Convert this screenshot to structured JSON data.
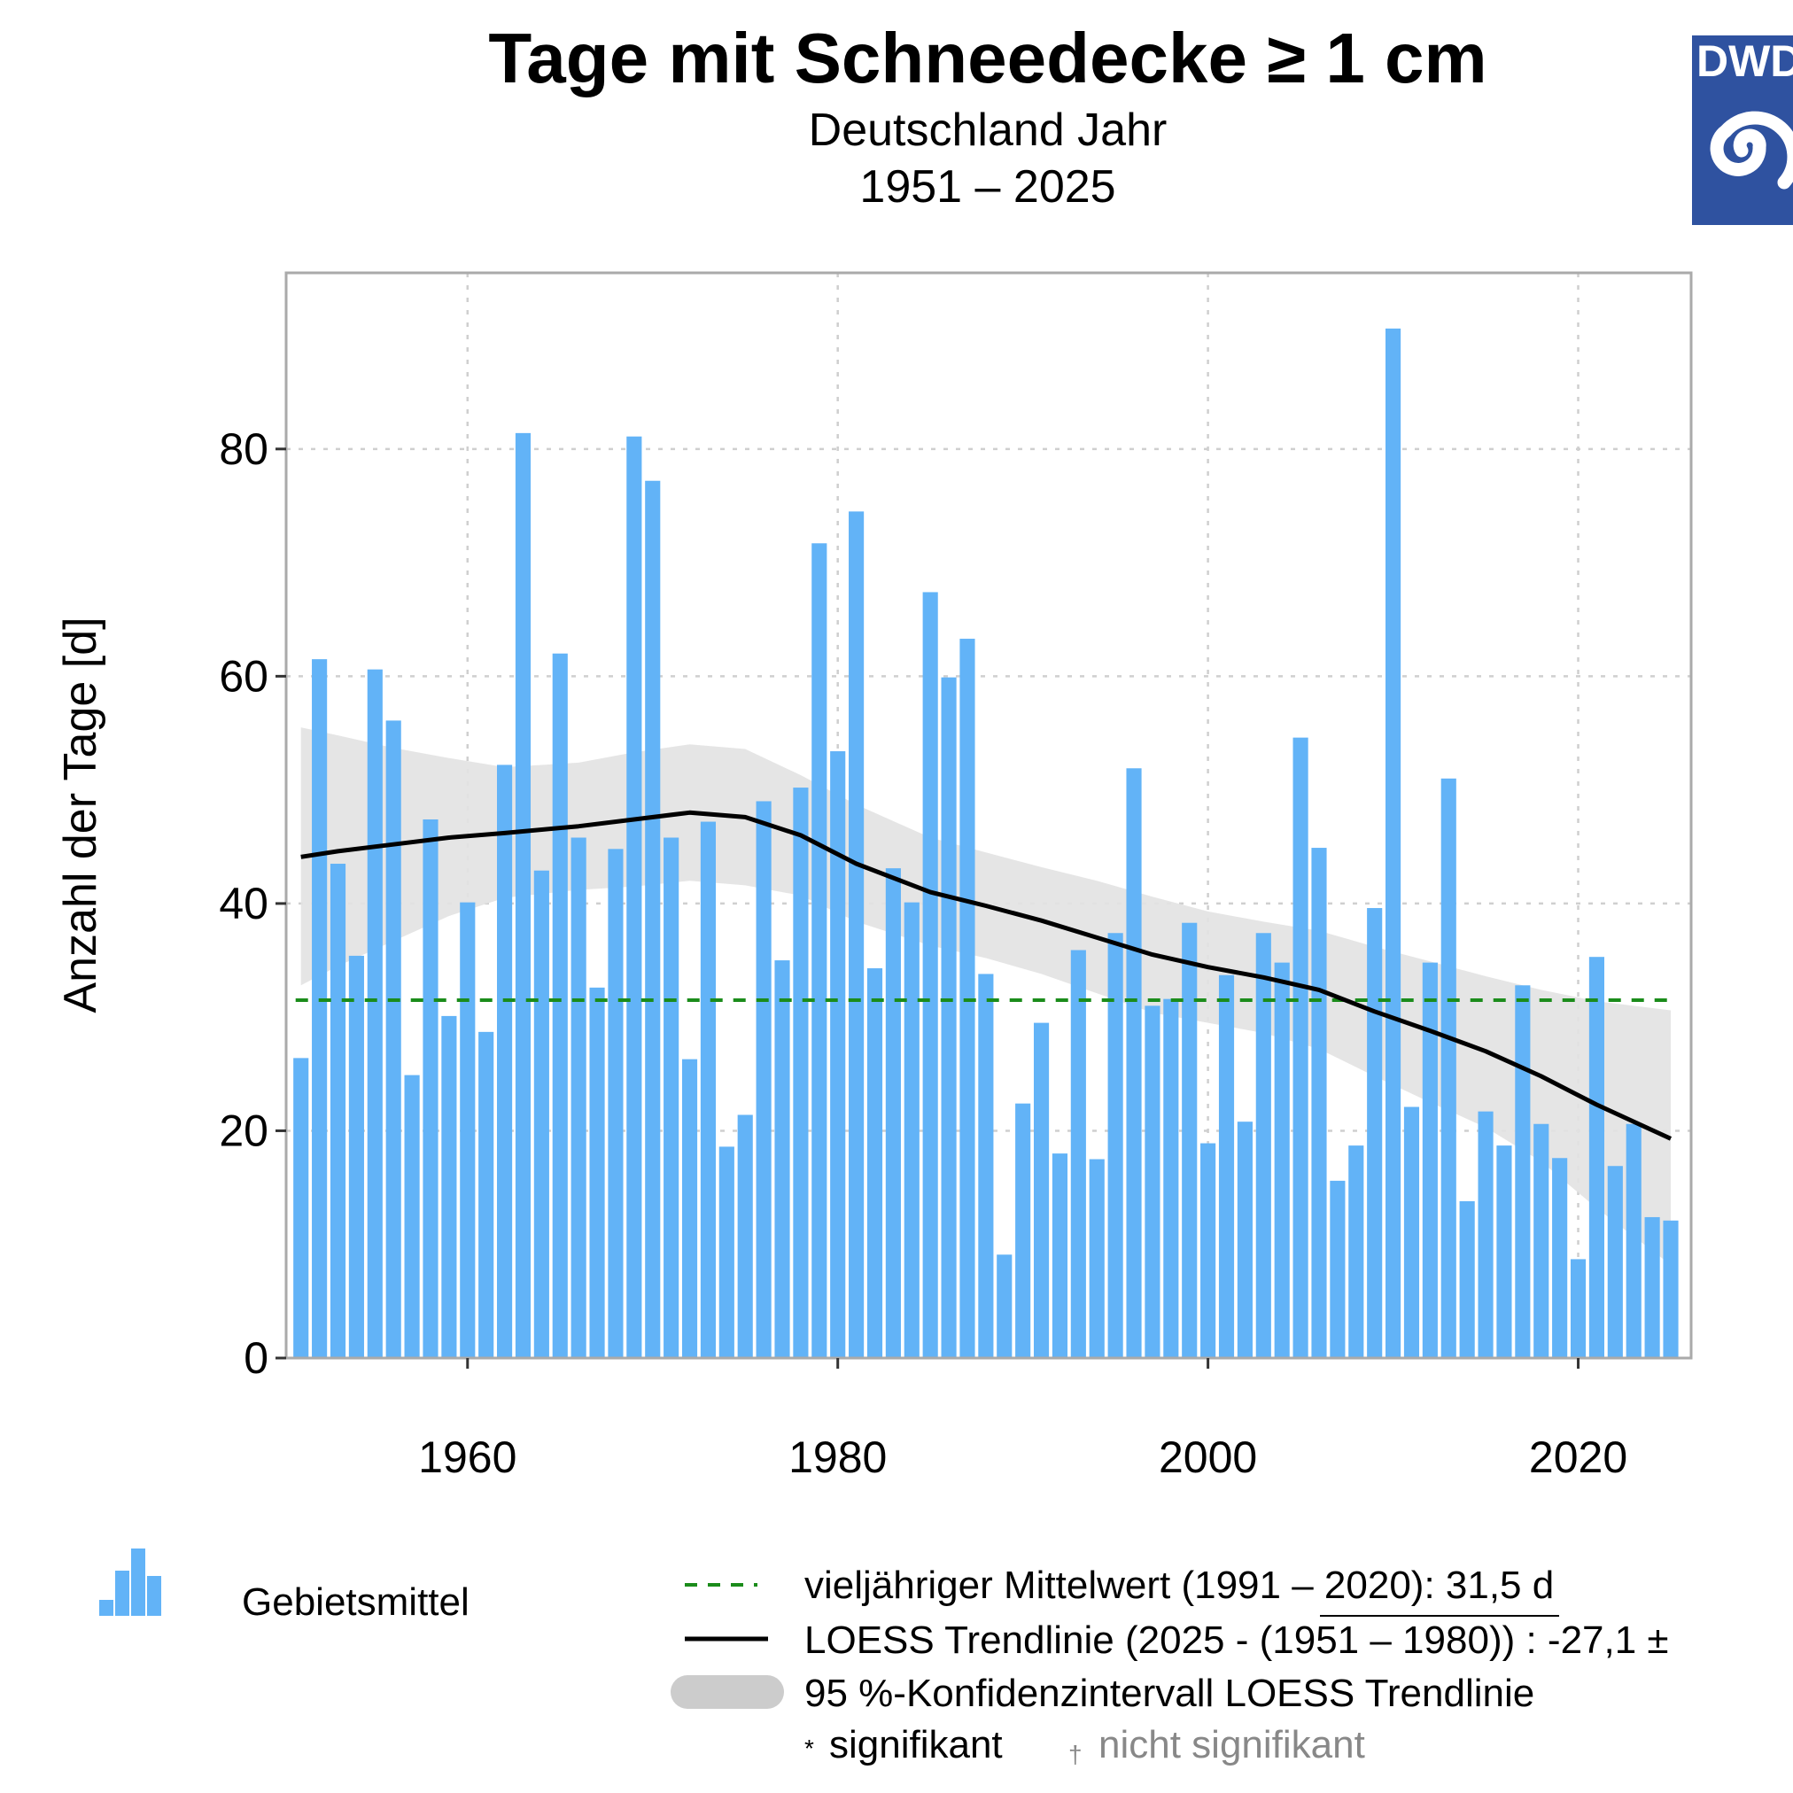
{
  "colors": {
    "bar": "#62b3f7",
    "ci_band": "#e3e3e3",
    "trend": "#000000",
    "mean_line": "#1b8c1b",
    "grid": "#cfcfcf",
    "panel_border": "#aaaaaa",
    "logo_bg": "#2f52a0",
    "dagger_gray": "#888888"
  },
  "logo": {
    "text": "DWD",
    "icon": "dwd-spiral-icon"
  },
  "chart_data": {
    "type": "bar",
    "title": "Tage mit Schneedecke ≥ 1 cm",
    "subtitle": "Deutschland Jahr",
    "period": "1951 – 2025",
    "xlabel": "",
    "ylabel": "Anzahl der Tage [d]",
    "xlim": [
      1950.2,
      2026.1
    ],
    "ylim": [
      0,
      95.5
    ],
    "xticks": [
      1960,
      1980,
      2000,
      2020
    ],
    "yticks": [
      0,
      20,
      40,
      60,
      80
    ],
    "grid": true,
    "years": [
      1951,
      1952,
      1953,
      1954,
      1955,
      1956,
      1957,
      1958,
      1959,
      1960,
      1961,
      1962,
      1963,
      1964,
      1965,
      1966,
      1967,
      1968,
      1969,
      1970,
      1971,
      1972,
      1973,
      1974,
      1975,
      1976,
      1977,
      1978,
      1979,
      1980,
      1981,
      1982,
      1983,
      1984,
      1985,
      1986,
      1987,
      1988,
      1989,
      1990,
      1991,
      1992,
      1993,
      1994,
      1995,
      1996,
      1997,
      1998,
      1999,
      2000,
      2001,
      2002,
      2003,
      2004,
      2005,
      2006,
      2007,
      2008,
      2009,
      2010,
      2011,
      2012,
      2013,
      2014,
      2015,
      2016,
      2017,
      2018,
      2019,
      2020,
      2021,
      2022,
      2023,
      2024,
      2025
    ],
    "series": [
      {
        "name": "Gebietsmittel",
        "values": [
          26.4,
          61.5,
          43.5,
          35.4,
          60.6,
          56.1,
          24.9,
          47.4,
          30.1,
          40.1,
          28.7,
          52.2,
          81.4,
          42.9,
          62.0,
          45.8,
          32.6,
          44.8,
          81.1,
          77.2,
          45.8,
          26.3,
          47.2,
          18.6,
          21.4,
          49.0,
          35.0,
          50.2,
          71.7,
          53.4,
          74.5,
          34.3,
          43.1,
          40.1,
          67.4,
          59.9,
          63.3,
          33.8,
          9.1,
          22.4,
          29.5,
          18.0,
          35.9,
          17.5,
          37.4,
          51.9,
          31.0,
          31.6,
          38.3,
          18.9,
          33.7,
          20.8,
          37.4,
          34.8,
          54.6,
          44.9,
          15.6,
          18.7,
          39.6,
          90.6,
          22.1,
          34.8,
          51.0,
          13.8,
          21.7,
          18.7,
          32.8,
          20.6,
          17.6,
          8.7,
          35.3,
          16.9,
          20.6,
          12.4,
          12.1
        ]
      },
      {
        "name": "LOESS Trendlinie",
        "x": [
          1951,
          1953,
          1956,
          1959,
          1962,
          1966,
          1969,
          1972,
          1975,
          1978,
          1981,
          1985,
          1988,
          1991,
          1994,
          1997,
          2000,
          2003,
          2006,
          2009,
          2012,
          2015,
          2018,
          2021,
          2025
        ],
        "values": [
          44.1,
          44.6,
          45.2,
          45.8,
          46.2,
          46.8,
          47.4,
          48.0,
          47.6,
          46.0,
          43.5,
          41.0,
          39.8,
          38.5,
          37.0,
          35.5,
          34.4,
          33.5,
          32.4,
          30.5,
          28.8,
          27.0,
          24.8,
          22.3,
          19.3
        ]
      },
      {
        "name": "95 %-Konfidenzintervall LOESS Trendlinie",
        "x": [
          1951,
          1953,
          1956,
          1959,
          1962,
          1966,
          1969,
          1972,
          1975,
          1978,
          1981,
          1985,
          1988,
          1991,
          1994,
          1997,
          2000,
          2003,
          2006,
          2009,
          2012,
          2015,
          2018,
          2021,
          2025
        ],
        "upper": [
          55.5,
          54.8,
          53.7,
          52.8,
          52.0,
          52.4,
          53.3,
          54.0,
          53.6,
          51.3,
          48.7,
          45.8,
          44.5,
          43.2,
          42.0,
          40.6,
          39.3,
          38.4,
          37.6,
          36.2,
          34.9,
          33.6,
          32.4,
          31.4,
          30.6
        ],
        "lower": [
          32.8,
          34.5,
          36.7,
          38.9,
          40.5,
          41.2,
          41.5,
          42.0,
          41.6,
          40.7,
          38.4,
          36.3,
          35.2,
          33.8,
          32.1,
          30.4,
          29.5,
          28.6,
          27.2,
          24.8,
          22.5,
          20.3,
          17.3,
          13.2,
          8.2
        ]
      },
      {
        "name": "vieljähriger Mittelwert (1991 – 2020)",
        "value": 31.5
      }
    ],
    "legend": {
      "position": "bottom",
      "bars_label": "Gebietsmittel",
      "mean_label": "vieljähriger Mittelwert (1991 – 2020): 31,5 d",
      "trend_label": "LOESS Trendlinie (2025 - (1951 – 1980)) : -27,1 ±",
      "ci_label": "95 %-Konfidenzintervall LOESS Trendlinie",
      "sig_marker": "*",
      "sig_label": "signifikant",
      "nonsig_marker": "†",
      "nonsig_label": "nicht signifikant"
    }
  }
}
